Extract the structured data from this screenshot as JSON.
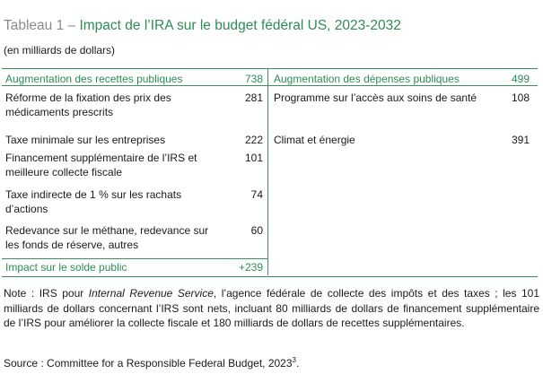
{
  "title": {
    "label": "Tableau 1 – ",
    "main": "Impact de l’IRA sur le budget fédéral US, 2023-2032"
  },
  "subtitle": "(en milliards de dollars)",
  "left": {
    "header": {
      "label": "Augmentation des recettes publiques",
      "value": "738"
    },
    "rows": [
      {
        "label": "Réforme de la fixation des prix des médicaments prescrits",
        "value": "281"
      },
      {
        "label": "Taxe minimale sur les entreprises",
        "value": "222"
      },
      {
        "label": "Financement supplémentaire de l’IRS et meilleure collecte fiscale",
        "value": "101"
      },
      {
        "label": "Taxe indirecte de 1 % sur les rachats d’actions",
        "value": "74"
      },
      {
        "label": "Redevance sur le méthane, redevance sur les fonds de réserve, autres",
        "value": "60"
      }
    ],
    "footer": {
      "label": "Impact sur le solde public",
      "value": "+239"
    }
  },
  "right": {
    "header": {
      "label": "Augmentation des dépenses publiques",
      "value": "499"
    },
    "rows": [
      {
        "label": "Programme sur l’accès aux soins de santé",
        "value": "108"
      },
      {
        "label": "Climat et énergie",
        "value": "391"
      }
    ]
  },
  "note": {
    "prefix": "Note : IRS pour ",
    "italic": "Internal Revenue Service",
    "suffix": ", l’agence fédérale de collecte des impôts et des taxes ; les 101 milliards de dollars concernant l’IRS sont nets, incluant 80 milliards de dollars de financement supplémentaire de l’IRS pour améliorer la collecte fiscale et 180 milliards de dollars de recettes supplémentaires."
  },
  "source": {
    "text": "Source : Committee for a Responsible Federal Budget, 2023",
    "sup": "3",
    "end": "."
  }
}
